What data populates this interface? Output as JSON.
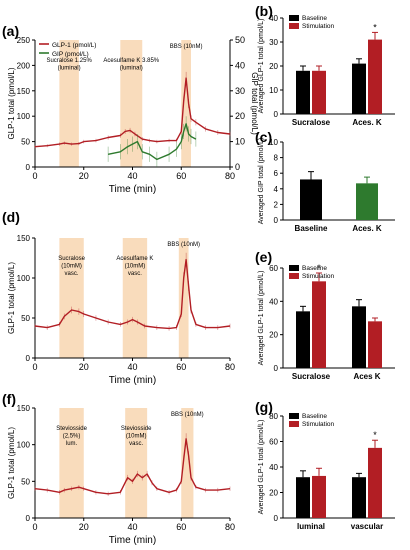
{
  "chart_data": [
    {
      "panel": "(a)",
      "type": "line",
      "xlabel": "Time (min)",
      "ylabel": "GLP-1 total (pmol/L)",
      "ylabel_right": "GIP total (pmol/L)",
      "xlim": [
        0,
        80
      ],
      "ylim": [
        0,
        250
      ],
      "ylim_right": [
        0,
        50
      ],
      "xticks": [
        0,
        20,
        40,
        60,
        80
      ],
      "yticks": [
        0,
        50,
        100,
        150,
        200,
        250
      ],
      "yticks_right": [
        0,
        10,
        20,
        30,
        40,
        50
      ],
      "legend": [
        "GLP-1 (pmol/L)",
        "GIP (pmol/L)"
      ],
      "stimuli": [
        {
          "label": "Sucralose 1.25% (luminal)",
          "start": 10,
          "end": 18
        },
        {
          "label": "Acesulfame K 3.85% (luminal)",
          "start": 35,
          "end": 44
        },
        {
          "label": "BBS (10nM)",
          "start": 60,
          "end": 64
        }
      ],
      "series": [
        {
          "name": "GLP-1 (pmol/L)",
          "color": "#b21e24",
          "axis": "left",
          "x": [
            0,
            5,
            10,
            12,
            15,
            18,
            20,
            25,
            30,
            35,
            37,
            39,
            41,
            44,
            47,
            50,
            55,
            58,
            60,
            61,
            62,
            63,
            64,
            66,
            70,
            75,
            80
          ],
          "values": [
            40,
            42,
            45,
            47,
            45,
            46,
            50,
            52,
            58,
            62,
            70,
            72,
            65,
            55,
            52,
            50,
            52,
            52,
            70,
            130,
            175,
            125,
            95,
            88,
            75,
            68,
            65
          ]
        },
        {
          "name": "GIP (pmol/L)",
          "color": "#2e7a2e",
          "axis": "right",
          "x": [
            30,
            35,
            38,
            40,
            42,
            44,
            47,
            50,
            55,
            58,
            60,
            61,
            62,
            63,
            64,
            66
          ],
          "values": [
            5,
            6,
            8,
            9,
            10,
            6,
            5,
            3,
            5,
            7,
            10,
            14,
            17,
            13,
            12,
            11
          ]
        }
      ]
    },
    {
      "panel": "(b)",
      "type": "bar",
      "ylabel": "Averaged GLP-1 total (pmol/L)",
      "ylim": [
        0,
        40
      ],
      "yticks": [
        0,
        10,
        20,
        30,
        40
      ],
      "categories": [
        "Sucralose",
        "Aces. K"
      ],
      "legend": [
        "Baseline",
        "Stimulation"
      ],
      "significance": [
        "",
        "*"
      ],
      "series": [
        {
          "name": "Baseline",
          "color": "#000000",
          "values": [
            18,
            21
          ],
          "errors": [
            2,
            2
          ]
        },
        {
          "name": "Stimulation",
          "color": "#b21e24",
          "values": [
            18,
            31
          ],
          "errors": [
            2,
            3
          ]
        }
      ]
    },
    {
      "panel": "(c)",
      "type": "bar",
      "ylabel": "Averaged GIP total (pmol/L)",
      "ylim": [
        0,
        10
      ],
      "yticks": [
        0,
        2,
        4,
        6,
        8,
        10
      ],
      "categories": [
        "Baseline",
        "Aces. K"
      ],
      "series": [
        {
          "name": "",
          "colors": [
            "#000000",
            "#2e7a2e"
          ],
          "values": [
            5.2,
            4.7
          ],
          "errors": [
            1.0,
            0.8
          ]
        }
      ]
    },
    {
      "panel": "(d)",
      "type": "line",
      "xlabel": "Time (min)",
      "ylabel": "GLP-1 total (pmol/L)",
      "xlim": [
        0,
        80
      ],
      "ylim": [
        0,
        150
      ],
      "xticks": [
        0,
        20,
        40,
        60,
        80
      ],
      "yticks": [
        0,
        50,
        100,
        150
      ],
      "stimuli": [
        {
          "label": "Sucralose (10mM) vasc.",
          "start": 10,
          "end": 20
        },
        {
          "label": "Acesulfame K (10mM) vasc.",
          "start": 36,
          "end": 46
        },
        {
          "label": "BBS (10nM)",
          "start": 59,
          "end": 63
        }
      ],
      "series": [
        {
          "name": "",
          "color": "#b21e24",
          "x": [
            0,
            5,
            10,
            12,
            15,
            18,
            20,
            25,
            30,
            35,
            38,
            40,
            42,
            45,
            50,
            55,
            58,
            60,
            61,
            62,
            63,
            64,
            66,
            70,
            75,
            80
          ],
          "values": [
            40,
            38,
            42,
            52,
            60,
            58,
            55,
            50,
            45,
            42,
            45,
            48,
            45,
            40,
            38,
            37,
            38,
            55,
            100,
            123,
            90,
            60,
            42,
            38,
            38,
            40
          ]
        }
      ]
    },
    {
      "panel": "(e)",
      "type": "bar",
      "ylabel": "Averaged GLP-1 total (pmol/L)",
      "ylim": [
        0,
        60
      ],
      "yticks": [
        0,
        20,
        40,
        60
      ],
      "categories": [
        "Sucralose",
        "Aces K"
      ],
      "legend": [
        "Baseline",
        "Stimulation"
      ],
      "significance": [
        "*",
        ""
      ],
      "series": [
        {
          "name": "Baseline",
          "color": "#000000",
          "values": [
            34,
            37
          ],
          "errors": [
            3,
            4
          ]
        },
        {
          "name": "Stimulation",
          "color": "#b21e24",
          "values": [
            52,
            28
          ],
          "errors": [
            5,
            2
          ]
        }
      ]
    },
    {
      "panel": "(f)",
      "type": "line",
      "xlabel": "Time (min)",
      "ylabel": "GLP-1 total (pmol/L)",
      "xlim": [
        0,
        80
      ],
      "ylim": [
        0,
        150
      ],
      "xticks": [
        0,
        20,
        40,
        60,
        80
      ],
      "yticks": [
        0,
        50,
        100,
        150
      ],
      "stimuli": [
        {
          "label": "Steviosside (2,5%) lum.",
          "start": 10,
          "end": 20
        },
        {
          "label": "Steviosside (10mM) vasc.",
          "start": 37,
          "end": 46
        },
        {
          "label": "BBS (10nM)",
          "start": 60,
          "end": 65
        }
      ],
      "series": [
        {
          "name": "",
          "color": "#b21e24",
          "x": [
            0,
            5,
            10,
            12,
            15,
            18,
            20,
            25,
            30,
            35,
            38,
            40,
            42,
            44,
            46,
            48,
            50,
            55,
            58,
            60,
            61,
            62,
            63,
            64,
            66,
            70,
            75,
            80
          ],
          "values": [
            40,
            38,
            35,
            38,
            40,
            42,
            40,
            35,
            33,
            35,
            55,
            50,
            60,
            55,
            60,
            48,
            40,
            35,
            38,
            50,
            80,
            108,
            85,
            55,
            42,
            38,
            38,
            40
          ]
        }
      ]
    },
    {
      "panel": "(g)",
      "type": "bar",
      "ylabel": "Averaged GLP-1 total (pmol/L)",
      "ylim": [
        0,
        80
      ],
      "yticks": [
        0,
        20,
        40,
        60,
        80
      ],
      "categories": [
        "luminal",
        "vascular"
      ],
      "legend": [
        "Baseline",
        "Stimulation"
      ],
      "significance": [
        "",
        "*"
      ],
      "series": [
        {
          "name": "Baseline",
          "color": "#000000",
          "values": [
            32,
            32
          ],
          "errors": [
            5,
            3
          ]
        },
        {
          "name": "Stimulation",
          "color": "#b21e24",
          "values": [
            33,
            55
          ],
          "errors": [
            6,
            6
          ]
        }
      ]
    }
  ]
}
